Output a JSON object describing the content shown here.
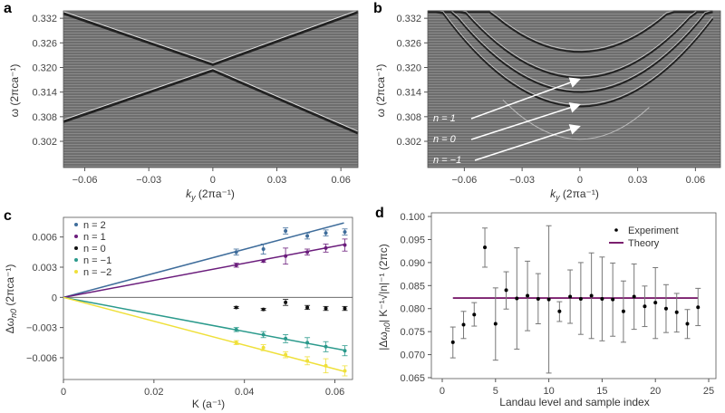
{
  "chart_data": [
    {
      "panel": "a",
      "type": "heatmap",
      "colormap": "grayscale",
      "xlabel": {
        "main": "k",
        "sub": "y",
        "unit": " (2πa⁻¹)"
      },
      "ylabel": "ω (2πca⁻¹)",
      "xticks": [
        -0.06,
        -0.03,
        0,
        0.03,
        0.06
      ],
      "xtick_labels": [
        "−0.06",
        "−0.03",
        "0",
        "0.03",
        "0.06"
      ],
      "yticks": [
        0.302,
        0.308,
        0.314,
        0.32,
        0.326,
        0.332
      ],
      "ytick_labels": [
        "0.302",
        "0.308",
        "0.314",
        "0.320",
        "0.326",
        "0.332"
      ],
      "xlim": [
        -0.07,
        0.068
      ],
      "ylim": [
        0.2956,
        0.3338
      ]
    },
    {
      "panel": "b",
      "type": "heatmap",
      "colormap": "grayscale",
      "xlabel": {
        "main": "k",
        "sub": "y",
        "unit": " (2πa⁻¹)"
      },
      "ylabel": "ω (2πca⁻¹)",
      "xticks": [
        -0.06,
        -0.03,
        0,
        0.03,
        0.06
      ],
      "xtick_labels": [
        "−0.06",
        "−0.03",
        "0",
        "0.03",
        "0.06"
      ],
      "yticks": [
        0.302,
        0.308,
        0.314,
        0.32,
        0.326,
        0.332
      ],
      "ytick_labels": [
        "0.302",
        "0.308",
        "0.314",
        "0.320",
        "0.326",
        "0.332"
      ],
      "xlim": [
        -0.079,
        0.073
      ],
      "ylim": [
        0.2956,
        0.3338
      ],
      "annotations": [
        "n = 1",
        "n = 0",
        "n = −1"
      ]
    },
    {
      "panel": "c",
      "type": "scatter",
      "xlabel": "K (a⁻¹)",
      "ylabel": {
        "main": "Δω",
        "sub": "n0",
        "unit": " (2πca⁻¹)"
      },
      "xticks": [
        0,
        0.02,
        0.04,
        0.06
      ],
      "xtick_labels": [
        "0",
        "0.02",
        "0.04",
        "0.06"
      ],
      "yticks": [
        -0.006,
        -0.003,
        0,
        0.003,
        0.006
      ],
      "ytick_labels": [
        "−0.006",
        "−0.003",
        "0",
        "0.003",
        "0.006"
      ],
      "xlim": [
        0,
        0.0639
      ],
      "ylim": [
        -0.00816,
        0.00795
      ],
      "legend": "top-left",
      "x": [
        0.0382,
        0.0442,
        0.0491,
        0.0539,
        0.058,
        0.0622
      ],
      "series": [
        {
          "name": "n = 2",
          "color": "#3f6d9b",
          "values": [
            0.0045,
            0.0048,
            0.0066,
            0.0061,
            0.0064,
            0.0065
          ],
          "errors": [
            0.0003,
            0.0005,
            0.0003,
            0.0003,
            0.0003,
            0.0003
          ],
          "fit_end": 0.0074
        },
        {
          "name": "n = 1",
          "color": "#6b1d7c",
          "values": [
            0.0032,
            0.0036,
            0.0041,
            0.0045,
            0.0049,
            0.0052
          ],
          "errors": [
            0.0002,
            0.0001,
            0.0008,
            0.0003,
            0.0004,
            0.0006
          ],
          "fit_end": 0.00525
        },
        {
          "name": "n = 0",
          "color": "#111111",
          "values": [
            -0.001,
            -0.0012,
            -0.0005,
            -0.001,
            -0.0011,
            -0.0011
          ],
          "errors": [
            0.0001,
            0.0001,
            0.0003,
            0.0002,
            0.0002,
            0.0002
          ],
          "fit_end": null
        },
        {
          "name": "n = −1",
          "color": "#2b9a8c",
          "values": [
            -0.0032,
            -0.0037,
            -0.0041,
            -0.0045,
            -0.0049,
            -0.0053
          ],
          "errors": [
            0.0002,
            0.0003,
            0.0004,
            0.0005,
            0.0005,
            0.0005
          ],
          "fit_end": -0.00525
        },
        {
          "name": "n = −2",
          "color": "#efe03a",
          "values": [
            -0.0045,
            -0.005,
            -0.0057,
            -0.0063,
            -0.0068,
            -0.0073
          ],
          "errors": [
            0.0002,
            0.0003,
            0.0003,
            0.0004,
            0.0007,
            0.0005
          ],
          "fit_end": -0.00735
        }
      ]
    },
    {
      "panel": "d",
      "type": "scatter",
      "xlabel": "Landau level and sample index",
      "ylabel": {
        "main": "|Δω",
        "sub": "n0",
        "unit": "| K⁻¹√|n|⁻¹ (2πc)"
      },
      "xticks": [
        0,
        5,
        10,
        15,
        20,
        25
      ],
      "xtick_labels": [
        "0",
        "5",
        "10",
        "15",
        "20",
        "25"
      ],
      "yticks": [
        0.065,
        0.07,
        0.075,
        0.08,
        0.085,
        0.09,
        0.095,
        0.1
      ],
      "ytick_labels": [
        "0.065",
        "0.070",
        "0.075",
        "0.080",
        "0.085",
        "0.090",
        "0.095",
        "0.100"
      ],
      "xlim": [
        -1.02,
        25.68
      ],
      "ylim": [
        0.0648,
        0.1008
      ],
      "legend": "top-right",
      "series": [
        {
          "name": "Experiment",
          "color": "#000000",
          "x": [
            1,
            2,
            3,
            4,
            5,
            6,
            7,
            8,
            9,
            10,
            11,
            12,
            13,
            14,
            15,
            16,
            17,
            18,
            19,
            20,
            21,
            22,
            23,
            24
          ],
          "values": [
            0.0727,
            0.0765,
            0.0787,
            0.0933,
            0.0767,
            0.084,
            0.0822,
            0.0828,
            0.0821,
            0.082,
            0.0794,
            0.0826,
            0.0821,
            0.0828,
            0.0821,
            0.082,
            0.0794,
            0.0826,
            0.0805,
            0.0813,
            0.08,
            0.0792,
            0.0767,
            0.0803
          ],
          "lower": [
            0.0693,
            0.0735,
            0.0762,
            0.089,
            0.0688,
            0.0799,
            0.0712,
            0.0752,
            0.0767,
            0.066,
            0.0772,
            0.0768,
            0.0744,
            0.0735,
            0.073,
            0.074,
            0.0727,
            0.0755,
            0.0761,
            0.0735,
            0.0748,
            0.0749,
            0.0735,
            0.0763
          ],
          "upper": [
            0.076,
            0.0794,
            0.0813,
            0.0975,
            0.0845,
            0.088,
            0.0932,
            0.0903,
            0.0876,
            0.098,
            0.0815,
            0.0884,
            0.09,
            0.0921,
            0.0912,
            0.0899,
            0.086,
            0.0897,
            0.0849,
            0.0889,
            0.0852,
            0.0833,
            0.0798,
            0.0844
          ]
        },
        {
          "name": "Theory",
          "color": "#7b1f6e",
          "x": [
            1,
            24
          ],
          "values": [
            0.0823,
            0.0823
          ]
        }
      ]
    }
  ]
}
